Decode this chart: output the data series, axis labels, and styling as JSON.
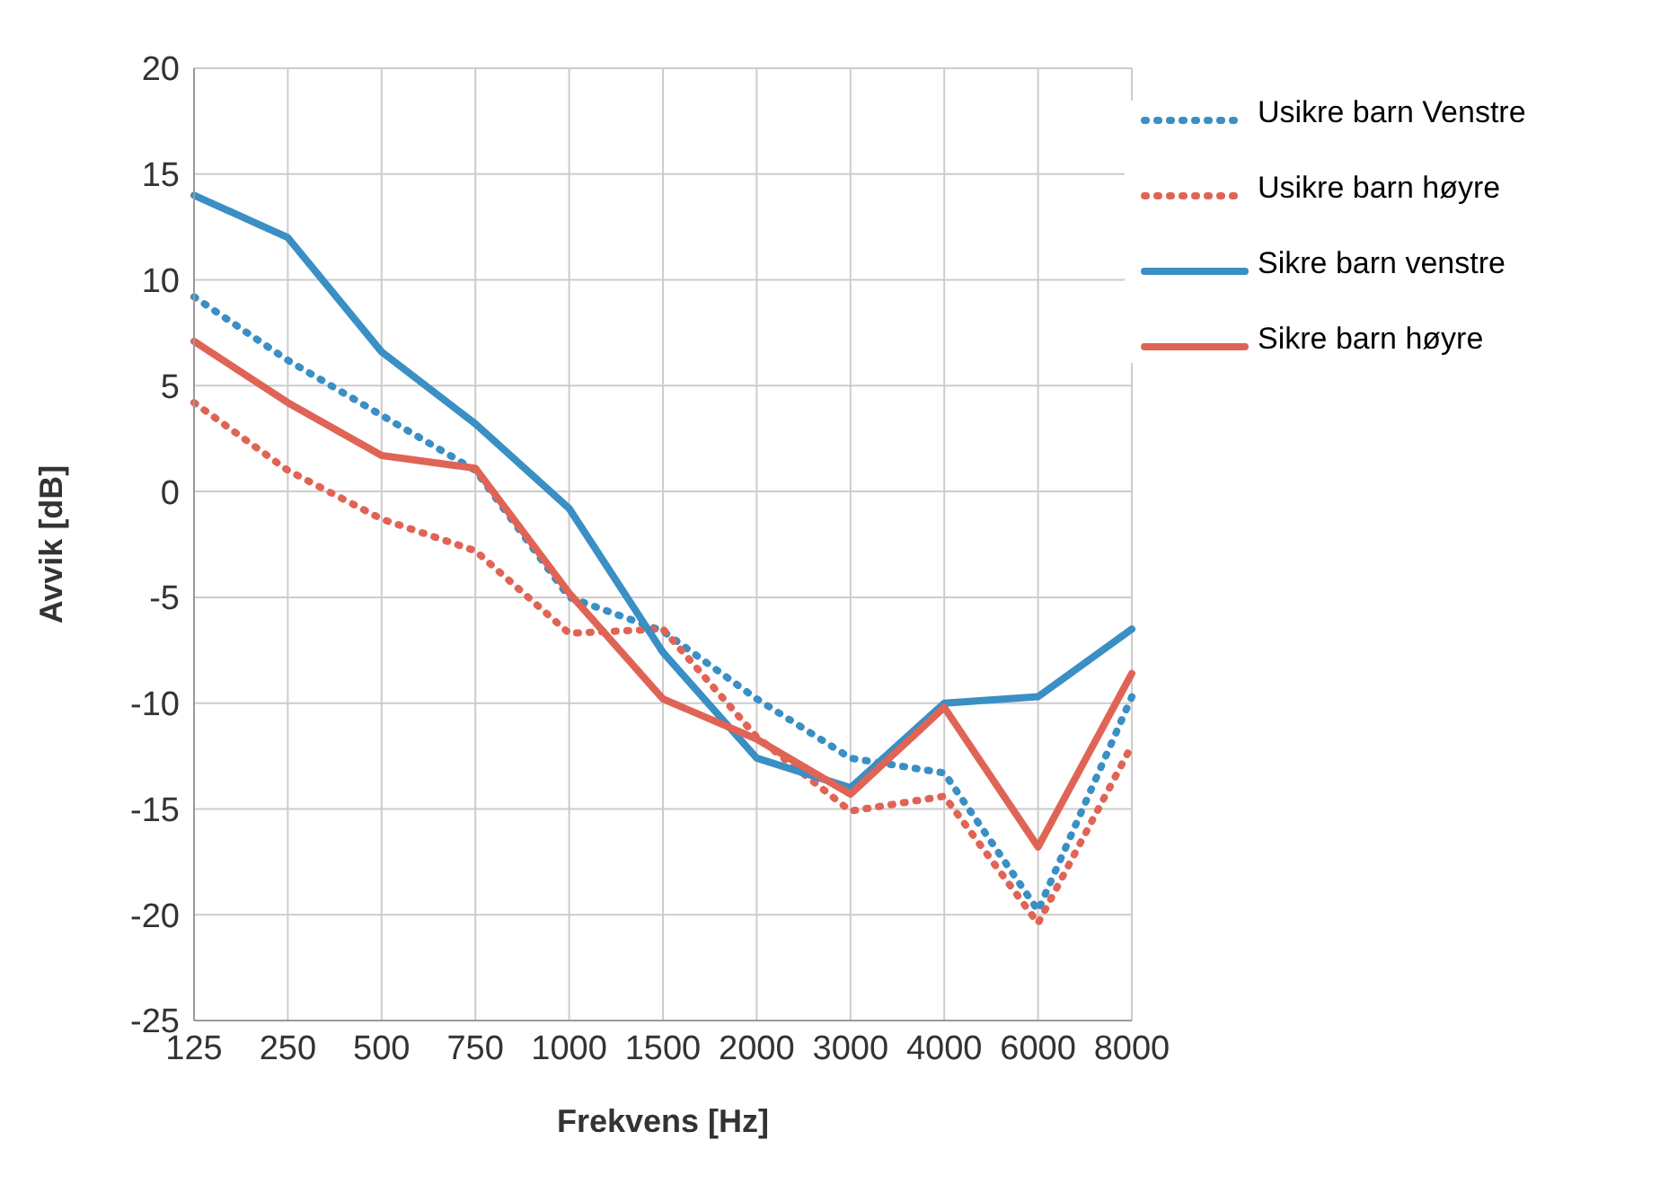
{
  "chart_data": {
    "type": "line",
    "xlabel": "Frekvens [Hz]",
    "ylabel": "Avvik  [dB]",
    "categories": [
      "125",
      "250",
      "500",
      "750",
      "1000",
      "1500",
      "2000",
      "3000",
      "4000",
      "6000",
      "8000"
    ],
    "ylim": [
      -25,
      20
    ],
    "yticks": [
      -25,
      -20,
      -15,
      -10,
      -5,
      0,
      5,
      10,
      15,
      20
    ],
    "grid": true,
    "legend": "top right",
    "marker": "none",
    "series": [
      {
        "name": "Usikre barn Venstre",
        "color": "#3a8fc4",
        "line_style": "dotted",
        "values": [
          9.2,
          6.2,
          3.6,
          1.0,
          -5,
          -6.6,
          -9.8,
          -12.6,
          -13.3,
          -19.8,
          -9.7
        ]
      },
      {
        "name": "Usikre barn høyre",
        "color": "#e06455",
        "line_style": "dotted",
        "values": [
          4.2,
          1,
          -1.3,
          -2.8,
          -6.7,
          -6.5,
          -11.6,
          -15.1,
          -14.4,
          -20.4,
          -12
        ]
      },
      {
        "name": "Sikre barn venstre",
        "color": "#3a8fc4",
        "line_style": "solid",
        "values": [
          14,
          12,
          6.6,
          3.2,
          -0.8,
          -7.6,
          -12.6,
          -14,
          -10,
          -9.7,
          -6.5
        ]
      },
      {
        "name": "Sikre barn høyre",
        "color": "#e06455",
        "line_style": "solid",
        "values": [
          7.1,
          4.2,
          1.7,
          1.1,
          -4.8,
          -9.8,
          -11.7,
          -14.3,
          -10.2,
          -16.8,
          -8.6
        ]
      }
    ]
  }
}
